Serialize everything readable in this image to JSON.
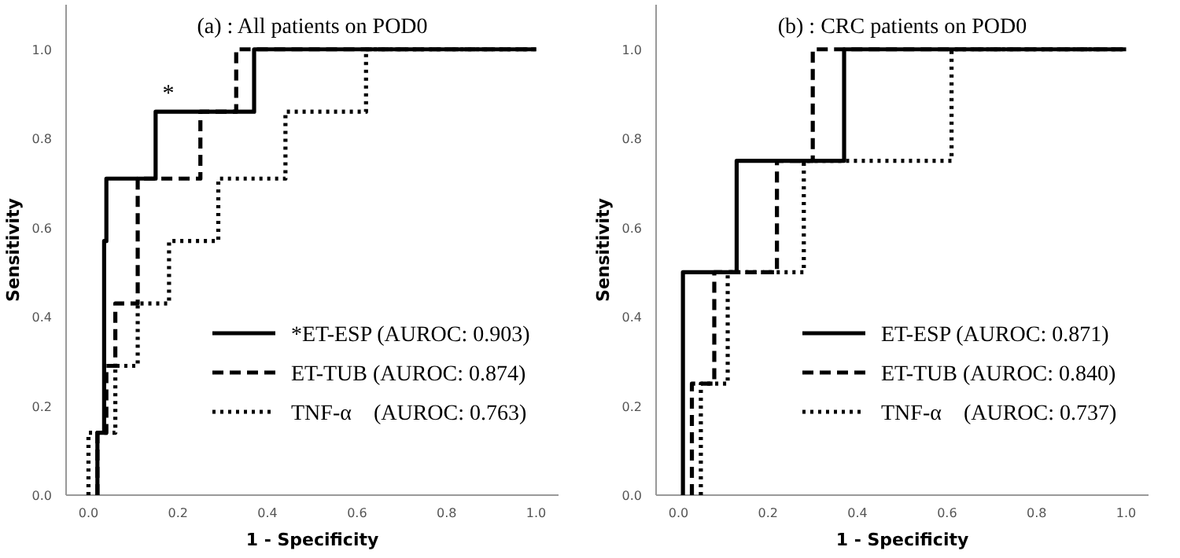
{
  "chart_data": [
    {
      "type": "line",
      "title": "(a) : All patients on POD0",
      "xlabel": "1 - Specificity",
      "ylabel": "Sensitivity",
      "xlim": [
        -0.05,
        1.05
      ],
      "ylim": [
        0,
        1.1
      ],
      "xticks": [
        {
          "value": 0,
          "label": "0.0"
        },
        {
          "value": 0.2,
          "label": "0.2"
        },
        {
          "value": 0.4,
          "label": "0.4"
        },
        {
          "value": 0.6,
          "label": "0.6"
        },
        {
          "value": 0.8,
          "label": "0.8"
        },
        {
          "value": 1,
          "label": "1.0"
        }
      ],
      "yticks": [
        {
          "value": 0,
          "label": "0.0"
        },
        {
          "value": 0.2,
          "label": "0.2"
        },
        {
          "value": 0.4,
          "label": "0.4"
        },
        {
          "value": 0.6,
          "label": "0.6"
        },
        {
          "value": 0.8,
          "label": "0.8"
        },
        {
          "value": 1,
          "label": "1.0"
        }
      ],
      "grid": false,
      "legend": "bottom right",
      "marker": "none",
      "annotations": [
        "*"
      ],
      "series": [
        {
          "name": "*ET-ESP (AUROC: 0.903)",
          "color": "#000000",
          "line_style": "solid",
          "x": [
            0.02,
            0.02,
            0.035,
            0.035,
            0.04,
            0.04,
            0.15,
            0.15,
            0.37,
            0.37,
            1
          ],
          "values": [
            0,
            0.14,
            0.14,
            0.57,
            0.57,
            0.71,
            0.71,
            0.86,
            0.86,
            1,
            1
          ]
        },
        {
          "name": "ET-TUB (AUROC: 0.874)",
          "color": "#000000",
          "line_style": "dashed",
          "x": [
            0.02,
            0.02,
            0.04,
            0.04,
            0.06,
            0.06,
            0.11,
            0.11,
            0.25,
            0.25,
            0.33,
            0.33,
            1
          ],
          "values": [
            0,
            0.14,
            0.14,
            0.29,
            0.29,
            0.43,
            0.43,
            0.71,
            0.71,
            0.86,
            0.86,
            1,
            1
          ]
        },
        {
          "name": "TNF-α (AUROC: 0.763)",
          "color": "#000000",
          "line_style": "dotted",
          "x": [
            0,
            0,
            0.06,
            0.06,
            0.11,
            0.11,
            0.18,
            0.18,
            0.29,
            0.29,
            0.44,
            0.44,
            0.62,
            0.62,
            1
          ],
          "values": [
            0,
            0.14,
            0.14,
            0.29,
            0.29,
            0.43,
            0.43,
            0.57,
            0.57,
            0.71,
            0.71,
            0.86,
            0.86,
            1,
            1
          ]
        }
      ]
    },
    {
      "type": "line",
      "title": "(b) : CRC patients on POD0",
      "xlabel": "1 - Specificity",
      "ylabel": "Sensitivity",
      "xlim": [
        -0.05,
        1.05
      ],
      "ylim": [
        0,
        1.1
      ],
      "xticks": [
        {
          "value": 0,
          "label": "0.0"
        },
        {
          "value": 0.2,
          "label": "0.2"
        },
        {
          "value": 0.4,
          "label": "0.4"
        },
        {
          "value": 0.6,
          "label": "0.6"
        },
        {
          "value": 0.8,
          "label": "0.8"
        },
        {
          "value": 1,
          "label": "1.0"
        }
      ],
      "yticks": [
        {
          "value": 0,
          "label": "0.0"
        },
        {
          "value": 0.2,
          "label": "0.2"
        },
        {
          "value": 0.4,
          "label": "0.4"
        },
        {
          "value": 0.6,
          "label": "0.6"
        },
        {
          "value": 0.8,
          "label": "0.8"
        },
        {
          "value": 1,
          "label": "1.0"
        }
      ],
      "grid": false,
      "legend": "bottom right",
      "marker": "none",
      "series": [
        {
          "name": "ET-ESP (AUROC: 0.871)",
          "color": "#000000",
          "line_style": "solid",
          "x": [
            0.01,
            0.01,
            0.13,
            0.13,
            0.37,
            0.37,
            1
          ],
          "values": [
            0,
            0.5,
            0.5,
            0.75,
            0.75,
            1,
            1
          ]
        },
        {
          "name": "ET-TUB (AUROC: 0.840)",
          "color": "#000000",
          "line_style": "dashed",
          "x": [
            0.03,
            0.03,
            0.08,
            0.08,
            0.22,
            0.22,
            0.3,
            0.3,
            1
          ],
          "values": [
            0,
            0.25,
            0.25,
            0.5,
            0.5,
            0.75,
            0.75,
            1,
            1
          ]
        },
        {
          "name": "TNF-α (AUROC: 0.737)",
          "color": "#000000",
          "line_style": "dotted",
          "x": [
            0.05,
            0.05,
            0.11,
            0.11,
            0.28,
            0.28,
            0.61,
            0.61,
            1
          ],
          "values": [
            0,
            0.25,
            0.25,
            0.5,
            0.5,
            0.75,
            0.75,
            1,
            1
          ]
        }
      ]
    }
  ]
}
